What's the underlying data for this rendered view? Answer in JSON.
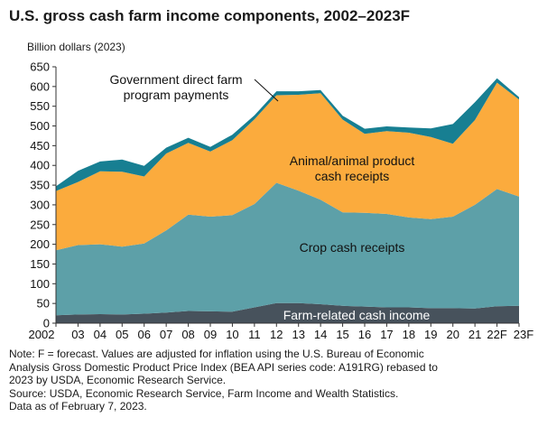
{
  "title": "U.S. gross cash farm income components, 2002–2023F",
  "units": "Billion dollars (2023)",
  "notes": [
    "Note: F = forecast. Values are adjusted for inflation using the U.S. Bureau of Economic",
    "Analysis Gross Domestic Product Price Index (BEA API series code: A191RG) rebased to",
    "2023 by USDA, Economic Research Service.",
    "Source: USDA, Economic Research Service, Farm Income and Wealth Statistics.",
    "Data as of February 7, 2023."
  ],
  "chart_data": {
    "type": "area",
    "stacked": true,
    "title": "U.S. gross cash farm income components, 2002–2023F",
    "ylabel": "Billion dollars (2023)",
    "ylim": [
      0,
      650
    ],
    "yticks": [
      0,
      50,
      100,
      150,
      200,
      250,
      300,
      350,
      400,
      450,
      500,
      550,
      600,
      650
    ],
    "categories": [
      "2002",
      "03",
      "04",
      "05",
      "06",
      "07",
      "08",
      "09",
      "10",
      "11",
      "12",
      "13",
      "14",
      "15",
      "16",
      "17",
      "18",
      "19",
      "20",
      "21",
      "22F",
      "23F"
    ],
    "series": [
      {
        "name": "Farm-related cash income",
        "color": "#47525c",
        "values": [
          20,
          22,
          23,
          22,
          24,
          27,
          31,
          30,
          29,
          40,
          51,
          51,
          48,
          44,
          42,
          40,
          40,
          38,
          38,
          37,
          43,
          44
        ]
      },
      {
        "name": "Crop cash receipts",
        "color": "#5da0a8",
        "values": [
          165,
          176,
          177,
          172,
          178,
          208,
          244,
          240,
          245,
          262,
          305,
          285,
          265,
          237,
          238,
          237,
          228,
          226,
          232,
          263,
          297,
          277
        ]
      },
      {
        "name": "Animal/animal product cash receipts",
        "color": "#fbab3d",
        "values": [
          150,
          160,
          185,
          190,
          170,
          195,
          182,
          165,
          190,
          215,
          222,
          243,
          270,
          235,
          200,
          210,
          215,
          208,
          185,
          215,
          270,
          246
        ]
      },
      {
        "name": "Government direct farm program payments",
        "color": "#177f92",
        "values": [
          12,
          28,
          25,
          31,
          27,
          15,
          13,
          12,
          14,
          10,
          10,
          9,
          8,
          10,
          13,
          12,
          13,
          22,
          50,
          45,
          11,
          6
        ]
      }
    ],
    "annotations": [
      {
        "text": "Government direct farm",
        "series": "Government direct farm program payments"
      },
      {
        "text": "program payments"
      },
      {
        "text": "Animal/animal product",
        "series": "Animal/animal product cash receipts"
      },
      {
        "text": "cash receipts"
      },
      {
        "text": "Crop cash receipts",
        "series": "Crop cash receipts"
      },
      {
        "text": "Farm-related cash income",
        "series": "Farm-related cash income"
      }
    ],
    "grid": false,
    "legend": "none"
  }
}
